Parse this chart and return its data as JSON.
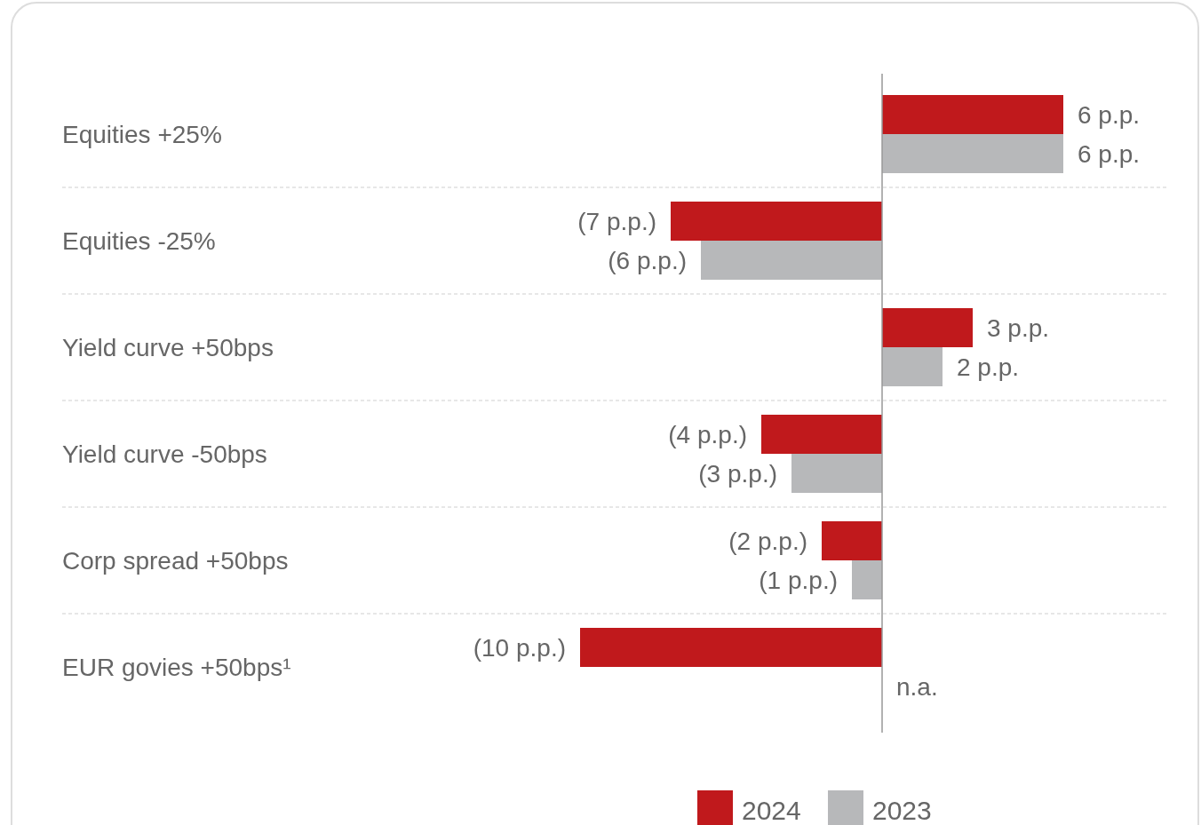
{
  "chart_data": {
    "type": "bar",
    "orientation": "horizontal",
    "categories": [
      "Equities +25%",
      "Equities -25%",
      "Yield curve +50bps",
      "Yield curve -50bps",
      "Corp spread +50bps",
      "EUR govies +50bps¹"
    ],
    "series": [
      {
        "name": "2024",
        "color": "#c0191c",
        "values": [
          6,
          -7,
          3,
          -4,
          -2,
          -10
        ],
        "value_labels": [
          "6 p.p.",
          "(7 p.p.)",
          "3 p.p.",
          "(4 p.p.)",
          "(2 p.p.)",
          "(10 p.p.)"
        ]
      },
      {
        "name": "2023",
        "color": "#b7b8ba",
        "values": [
          6,
          -6,
          2,
          -3,
          -1,
          null
        ],
        "value_labels": [
          "6 p.p.",
          "(6 p.p.)",
          "2 p.p.",
          "(3 p.p.)",
          "(1 p.p.)",
          "n.a."
        ]
      }
    ],
    "grid": "y",
    "legend": "bottom"
  }
}
